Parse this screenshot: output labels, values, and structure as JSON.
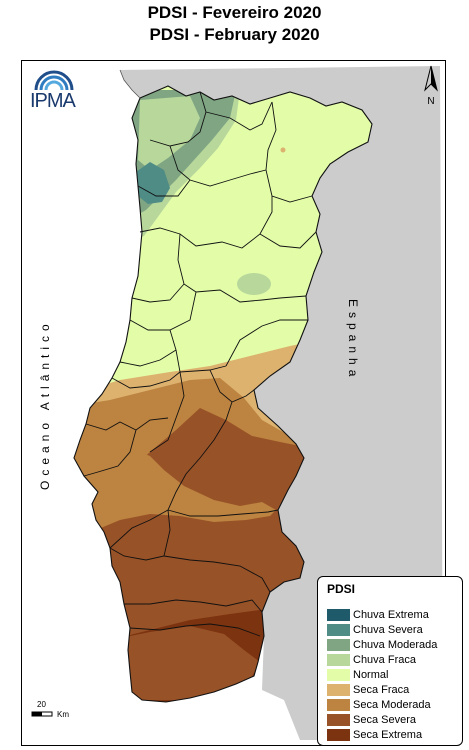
{
  "title": {
    "line1": "PDSI - Fevereiro 2020",
    "line2": "PDSI - February 2020"
  },
  "logo": {
    "text": "IPMA"
  },
  "north_arrow": {
    "label": "N"
  },
  "labels": {
    "ocean": "Oceano Atlântico",
    "spain": "Espanha"
  },
  "scale": {
    "value": "20",
    "unit": "Km"
  },
  "legend": {
    "title": "PDSI",
    "items": [
      {
        "label": "Chuva Extrema",
        "color": "#1f5a6b"
      },
      {
        "label": "Chuva Severa",
        "color": "#4f8c86"
      },
      {
        "label": "Chuva Moderada",
        "color": "#7fa583"
      },
      {
        "label": "Chuva Fraca",
        "color": "#b7d79b"
      },
      {
        "label": "Normal",
        "color": "#e2fca8"
      },
      {
        "label": "Seca Fraca",
        "color": "#ddb26e"
      },
      {
        "label": "Seca Moderada",
        "color": "#bd8340"
      },
      {
        "label": "Seca Severa",
        "color": "#985227"
      },
      {
        "label": "Seca Extrema",
        "color": "#7b3310"
      }
    ]
  },
  "colors": {
    "spain_land": "#cccccc",
    "sea": "#ffffff",
    "border": "#000000"
  }
}
